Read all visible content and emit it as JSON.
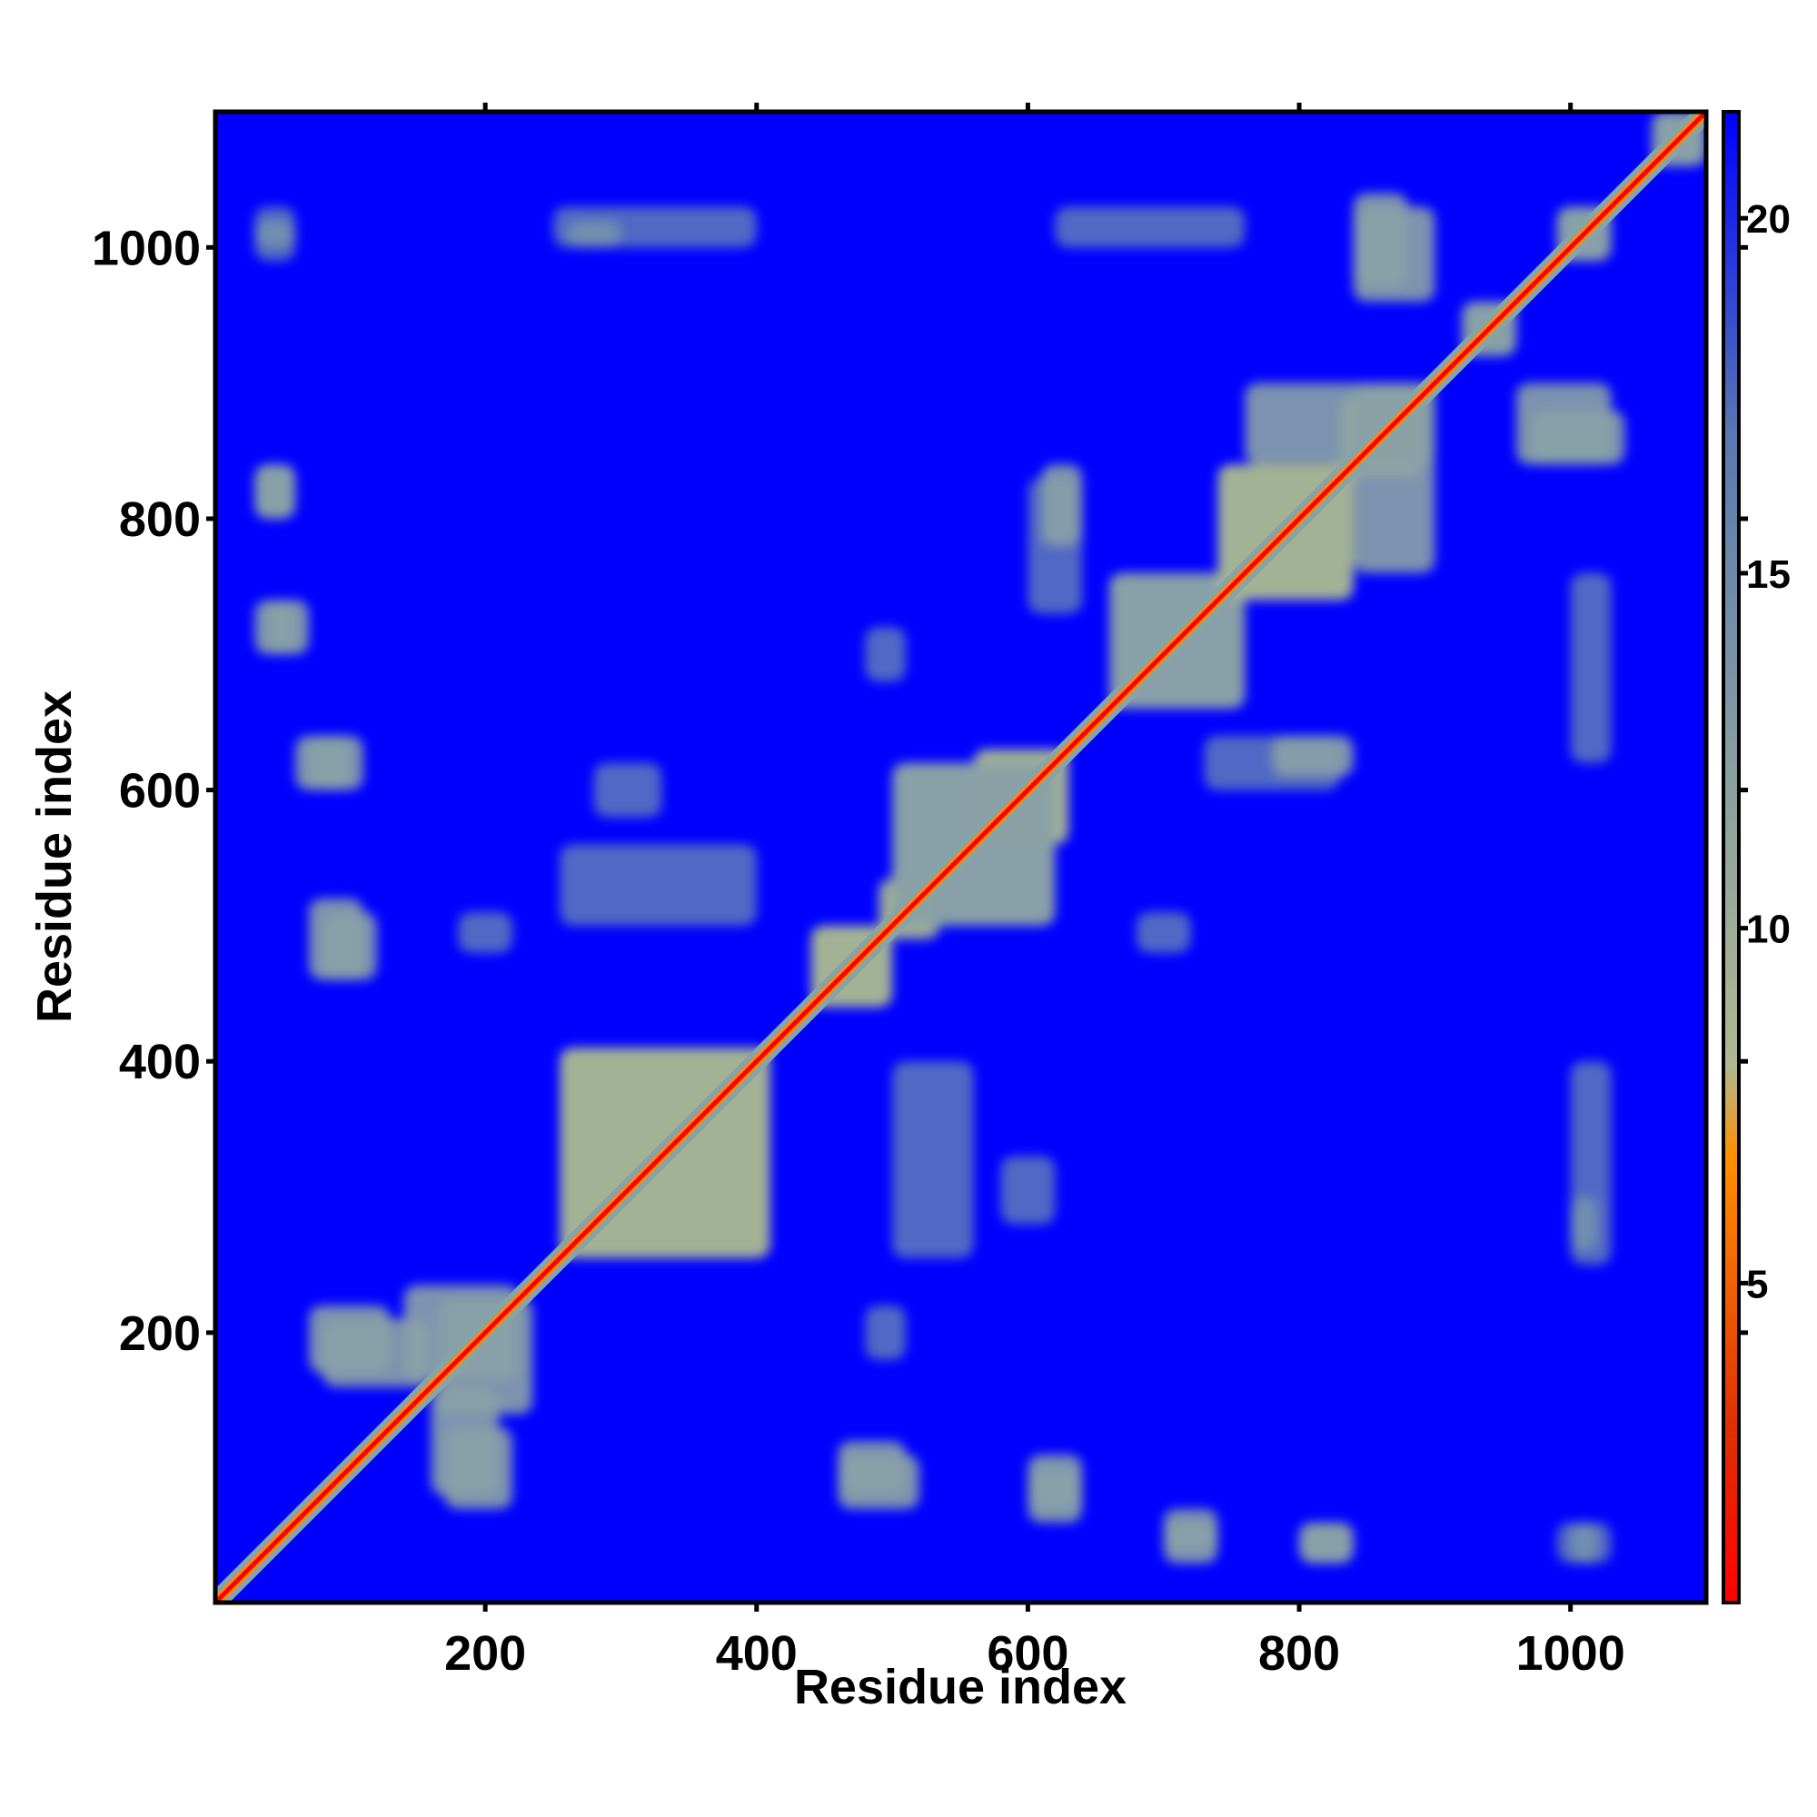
{
  "chart_data": {
    "type": "heatmap",
    "title": "",
    "xlabel": "Residue index",
    "ylabel": "Residue index",
    "xlim": [
      1,
      1100
    ],
    "ylim": [
      1,
      1100
    ],
    "x_ticks": [
      200,
      400,
      600,
      800,
      1000
    ],
    "y_ticks": [
      200,
      400,
      600,
      800,
      1000
    ],
    "colorbar": {
      "range": [
        0.5,
        21.5
      ],
      "ticks": [
        5,
        10,
        15,
        20
      ],
      "colors": [
        "#ff0000",
        "#ff8000",
        "#a8b89a",
        "#6a8aaa",
        "#0000ff"
      ]
    },
    "background_value": 21,
    "diagonal_value": 1,
    "contact_regions": [
      {
        "x": [
          255,
          410
        ],
        "y": [
          255,
          410
        ],
        "value": 12
      },
      {
        "x": [
          165,
          235
        ],
        "y": [
          140,
          225
        ],
        "value": 13
      },
      {
        "x": [
          440,
          500
        ],
        "y": [
          440,
          500
        ],
        "value": 12
      },
      {
        "x": [
          490,
          530
        ],
        "y": [
          495,
          535
        ],
        "value": 12
      },
      {
        "x": [
          560,
          630
        ],
        "y": [
          560,
          630
        ],
        "value": 12
      },
      {
        "x": [
          660,
          760
        ],
        "y": [
          660,
          760
        ],
        "value": 13
      },
      {
        "x": [
          740,
          840
        ],
        "y": [
          740,
          840
        ],
        "value": 12
      },
      {
        "x": [
          830,
          890
        ],
        "y": [
          830,
          890
        ],
        "value": 12
      },
      {
        "x": [
          920,
          960
        ],
        "y": [
          920,
          960
        ],
        "value": 14
      },
      {
        "x": [
          990,
          1030
        ],
        "y": [
          990,
          1030
        ],
        "value": 14
      },
      {
        "x": [
          1060,
          1100
        ],
        "y": [
          1060,
          1100
        ],
        "value": 14
      },
      {
        "x": [
          255,
          400
        ],
        "y": [
          500,
          560
        ],
        "value": 16
      },
      {
        "x": [
          500,
          620
        ],
        "y": [
          500,
          620
        ],
        "value": 15
      },
      {
        "x": [
          280,
          330
        ],
        "y": [
          580,
          620
        ],
        "value": 17
      },
      {
        "x": [
          730,
          830
        ],
        "y": [
          600,
          640
        ],
        "value": 16
      },
      {
        "x": [
          610,
          640
        ],
        "y": [
          780,
          840
        ],
        "value": 15
      },
      {
        "x": [
          760,
          900
        ],
        "y": [
          840,
          900
        ],
        "value": 15
      },
      {
        "x": [
          840,
          880
        ],
        "y": [
          970,
          1040
        ],
        "value": 15
      },
      {
        "x": [
          960,
          1030
        ],
        "y": [
          840,
          900
        ],
        "value": 15
      },
      {
        "x": [
          30,
          60
        ],
        "y": [
          800,
          840
        ],
        "value": 14
      },
      {
        "x": [
          70,
          110
        ],
        "y": [
          600,
          640
        ],
        "value": 14
      },
      {
        "x": [
          80,
          120
        ],
        "y": [
          460,
          510
        ],
        "value": 14
      },
      {
        "x": [
          80,
          160
        ],
        "y": [
          160,
          210
        ],
        "value": 14
      },
      {
        "x": [
          170,
          220
        ],
        "y": [
          70,
          130
        ],
        "value": 14
      },
      {
        "x": [
          460,
          520
        ],
        "y": [
          70,
          110
        ],
        "value": 14
      },
      {
        "x": [
          600,
          640
        ],
        "y": [
          60,
          100
        ],
        "value": 13
      },
      {
        "x": [
          800,
          840
        ],
        "y": [
          30,
          60
        ],
        "value": 14
      },
      {
        "x": [
          700,
          740
        ],
        "y": [
          40,
          70
        ],
        "value": 15
      },
      {
        "x": [
          1000,
          1020
        ],
        "y": [
          30,
          60
        ],
        "value": 15
      },
      {
        "x": [
          1000,
          1020
        ],
        "y": [
          260,
          300
        ],
        "value": 15
      },
      {
        "x": [
          30,
          60
        ],
        "y": [
          700,
          740
        ],
        "value": 15
      },
      {
        "x": [
          250,
          400
        ],
        "y": [
          1000,
          1030
        ],
        "value": 17
      },
      {
        "x": [
          620,
          760
        ],
        "y": [
          1000,
          1030
        ],
        "value": 17
      },
      {
        "x": [
          480,
          510
        ],
        "y": [
          680,
          720
        ],
        "value": 16
      },
      {
        "x": [
          480,
          510
        ],
        "y": [
          180,
          220
        ],
        "value": 16
      },
      {
        "x": [
          30,
          60
        ],
        "y": [
          990,
          1030
        ],
        "value": 16
      }
    ]
  }
}
